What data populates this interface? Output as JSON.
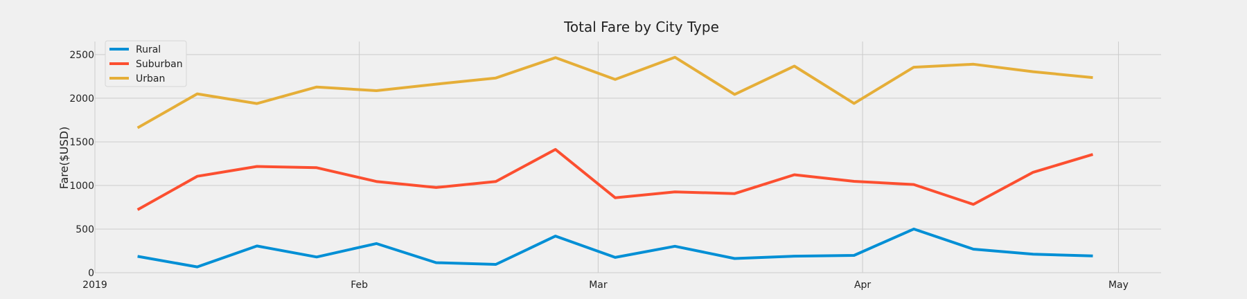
{
  "chart_data": {
    "type": "line",
    "title": "Total Fare by City Type",
    "xlabel": "",
    "ylabel": "Fare($USD)",
    "x": [
      "2019-01-06",
      "2019-01-13",
      "2019-01-20",
      "2019-01-27",
      "2019-02-03",
      "2019-02-10",
      "2019-02-17",
      "2019-02-24",
      "2019-03-03",
      "2019-03-10",
      "2019-03-17",
      "2019-03-24",
      "2019-03-31",
      "2019-04-07",
      "2019-04-14",
      "2019-04-21",
      "2019-04-28"
    ],
    "xlim": [
      "2019-01-01",
      "2019-05-06"
    ],
    "x_ticks": [
      {
        "date": "2019-01-01",
        "label": "2019"
      },
      {
        "date": "2019-02-01",
        "label": "Feb"
      },
      {
        "date": "2019-03-01",
        "label": "Mar"
      },
      {
        "date": "2019-04-01",
        "label": "Apr"
      },
      {
        "date": "2019-05-01",
        "label": "May"
      }
    ],
    "ylim": [
      0,
      2650
    ],
    "y_ticks": [
      0,
      500,
      1000,
      1500,
      2000,
      2500
    ],
    "grid": true,
    "legend_position": "top-left",
    "series": [
      {
        "name": "Rural",
        "color": "#008fd5",
        "values": [
          187,
          67,
          306,
          180,
          334,
          115,
          95,
          420,
          175,
          303,
          163,
          190,
          198,
          501,
          270,
          212,
          192
        ]
      },
      {
        "name": "Suburban",
        "color": "#fc4f30",
        "values": [
          722,
          1105,
          1218,
          1204,
          1046,
          977,
          1046,
          1413,
          859,
          927,
          907,
          1123,
          1047,
          1011,
          783,
          1151,
          1356
        ]
      },
      {
        "name": "Urban",
        "color": "#e5ae38",
        "values": [
          1661,
          2050,
          1939,
          2129,
          2087,
          2161,
          2232,
          2465,
          2215,
          2470,
          2044,
          2368,
          1941,
          2356,
          2390,
          2304,
          2237
        ]
      }
    ]
  }
}
